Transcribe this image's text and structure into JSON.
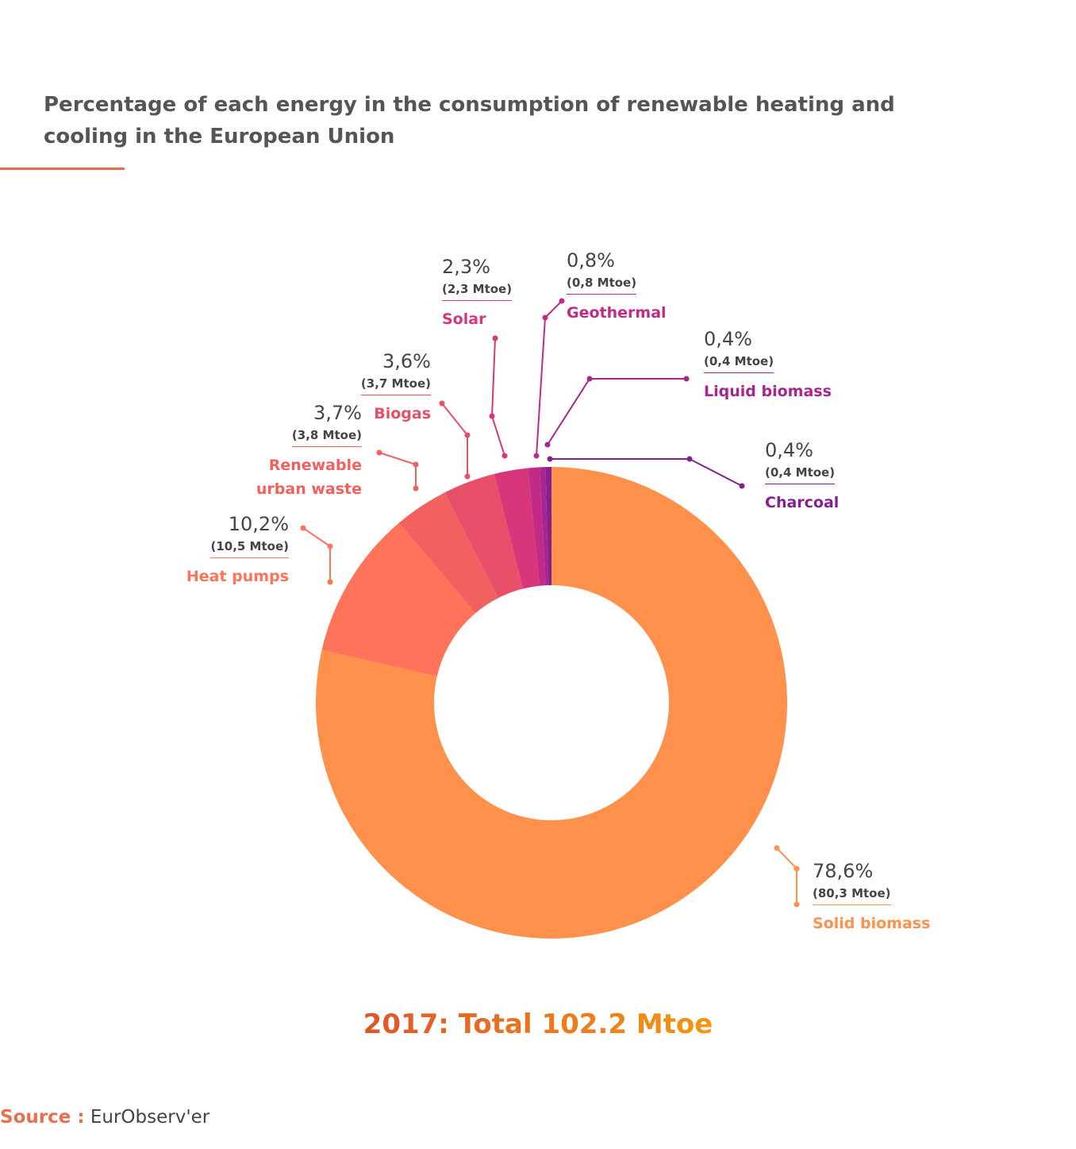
{
  "title": "Percentage of each energy in the consumption of renewable heating and cooling in the European Union",
  "total": "2017: Total 102.2 Mtoe",
  "source": {
    "label": "Source :",
    "value": "EurObserv'er"
  },
  "chart_data": {
    "type": "pie",
    "variant": "donut",
    "title": "Percentage of each energy in the consumption of renewable heating and cooling in the European Union",
    "subtitle": "2017: Total 102.2 Mtoe",
    "direction": "clockwise from top",
    "slices": [
      {
        "name": "Solid biomass",
        "percent": 78.6,
        "pct_label": "78,6%",
        "mtoe_label": "(80,3 Mtoe)",
        "mtoe": 80.3,
        "color": "#FF914D"
      },
      {
        "name": "Heat pumps",
        "percent": 10.2,
        "pct_label": "10,2%",
        "mtoe_label": "(10,5 Mtoe)",
        "mtoe": 10.5,
        "color": "#FF735A"
      },
      {
        "name": "Renewable urban waste",
        "percent": 3.7,
        "pct_label": "3,7%",
        "mtoe_label": "(3,8 Mtoe)",
        "mtoe": 3.8,
        "color": "#F2605F"
      },
      {
        "name": "Biogas",
        "percent": 3.6,
        "pct_label": "3,6%",
        "mtoe_label": "(3,7 Mtoe)",
        "mtoe": 3.7,
        "color": "#E8506A"
      },
      {
        "name": "Solar",
        "percent": 2.3,
        "pct_label": "2,3%",
        "mtoe_label": "(2,3 Mtoe)",
        "mtoe": 2.3,
        "color": "#D8357A"
      },
      {
        "name": "Geothermal",
        "percent": 0.8,
        "pct_label": "0,8%",
        "mtoe_label": "(0,8 Mtoe)",
        "mtoe": 0.8,
        "color": "#C22A88"
      },
      {
        "name": "Liquid biomass",
        "percent": 0.4,
        "pct_label": "0,4%",
        "mtoe_label": "(0,4 Mtoe)",
        "mtoe": 0.4,
        "color": "#A8248F"
      },
      {
        "name": "Charcoal",
        "percent": 0.4,
        "pct_label": "0,4%",
        "mtoe_label": "(0,4 Mtoe)",
        "mtoe": 0.4,
        "color": "#87208F"
      }
    ]
  }
}
